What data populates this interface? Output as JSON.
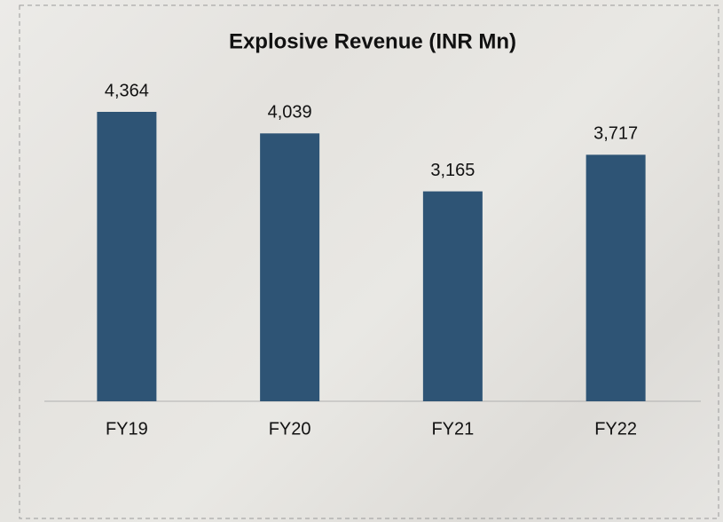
{
  "chart_data": {
    "type": "bar",
    "title": "Explosive Revenue (INR Mn)",
    "categories": [
      "FY19",
      "FY20",
      "FY21",
      "FY22"
    ],
    "values": [
      4364,
      4039,
      3165,
      3717
    ],
    "value_labels": [
      "4,364",
      "4,039",
      "3,165",
      "3,717"
    ],
    "color": "#2e5475"
  }
}
